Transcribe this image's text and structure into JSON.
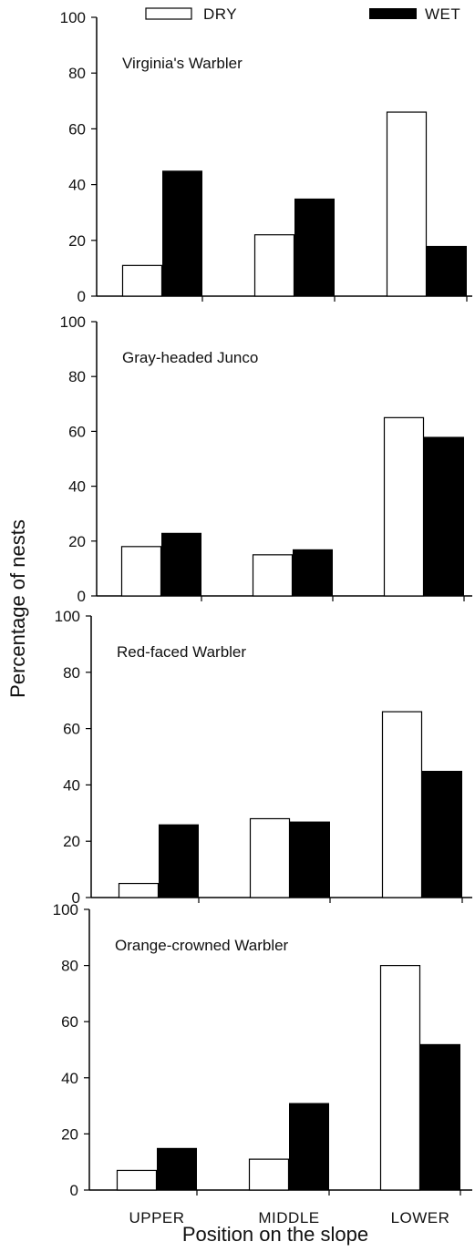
{
  "chart_data": {
    "type": "bar",
    "categories": [
      "UPPER",
      "MIDDLE",
      "LOWER"
    ],
    "legend": [
      {
        "name": "DRY",
        "color": "#ffffff"
      },
      {
        "name": "WET",
        "color": "#000000"
      }
    ],
    "ylabel": "Percentage of nests",
    "xlabel": "Position on the slope",
    "ylim": [
      0,
      100
    ],
    "yticks": [
      0,
      20,
      40,
      60,
      80,
      100
    ],
    "grid": false,
    "legend_position": "top",
    "panels": [
      {
        "title": "Virginia's Warbler",
        "series": [
          {
            "name": "DRY",
            "values": [
              11,
              22,
              66
            ]
          },
          {
            "name": "WET",
            "values": [
              45,
              35,
              18
            ]
          }
        ]
      },
      {
        "title": "Gray-headed Junco",
        "series": [
          {
            "name": "DRY",
            "values": [
              18,
              15,
              65
            ]
          },
          {
            "name": "WET",
            "values": [
              23,
              17,
              58
            ]
          }
        ]
      },
      {
        "title": "Red-faced Warbler",
        "series": [
          {
            "name": "DRY",
            "values": [
              5,
              28,
              66
            ]
          },
          {
            "name": "WET",
            "values": [
              26,
              27,
              45
            ]
          }
        ]
      },
      {
        "title": "Orange-crowned Warbler",
        "series": [
          {
            "name": "DRY",
            "values": [
              7,
              11,
              80
            ]
          },
          {
            "name": "WET",
            "values": [
              15,
              31,
              52
            ]
          }
        ]
      }
    ]
  }
}
